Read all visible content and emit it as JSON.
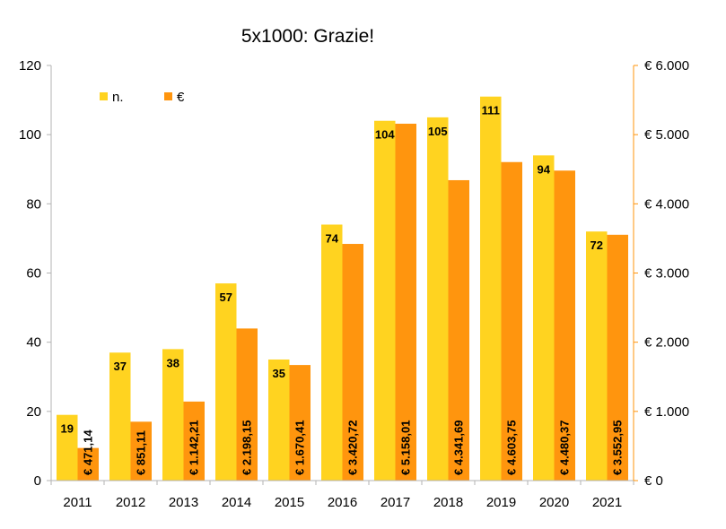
{
  "chart_data": {
    "type": "bar",
    "title": "5x1000: Grazie!",
    "categories": [
      "2011",
      "2012",
      "2013",
      "2014",
      "2015",
      "2016",
      "2017",
      "2018",
      "2019",
      "2020",
      "2021"
    ],
    "series": [
      {
        "name": "n.",
        "axis": "left",
        "color": "#ffd320",
        "values": [
          19,
          37,
          38,
          57,
          35,
          74,
          104,
          105,
          111,
          94,
          72
        ],
        "labels": [
          "19",
          "37",
          "38",
          "57",
          "35",
          "74",
          "104",
          "105",
          "111",
          "94",
          "72"
        ]
      },
      {
        "name": "€",
        "axis": "right",
        "color": "#ff950e",
        "values": [
          471.14,
          851.11,
          1142.21,
          2198.15,
          1670.41,
          3420.72,
          5158.01,
          4341.69,
          4603.75,
          4480.37,
          3552.95
        ],
        "labels": [
          "€ 471,14",
          "€ 851,11",
          "€ 1.142,21",
          "€ 2.198,15",
          "€ 1.670,41",
          "€ 3.420,72",
          "€ 5.158,01",
          "€ 4.341,69",
          "€ 4.603,75",
          "€ 4.480,37",
          "€ 3.552,95"
        ]
      }
    ],
    "y_left": {
      "ylim": [
        0,
        120
      ],
      "ticks": [
        "0",
        "20",
        "40",
        "60",
        "80",
        "100",
        "120"
      ]
    },
    "y_right": {
      "ylim": [
        0,
        6000
      ],
      "ticks": [
        "€ 0",
        "€ 1.000",
        "€ 2.000",
        "€ 3.000",
        "€ 4.000",
        "€ 5.000",
        "€ 6.000"
      ]
    },
    "grid": false,
    "legend_position": "top-left",
    "axis_color": "#b3b3b3",
    "right_axis_color": "#ff950e"
  }
}
